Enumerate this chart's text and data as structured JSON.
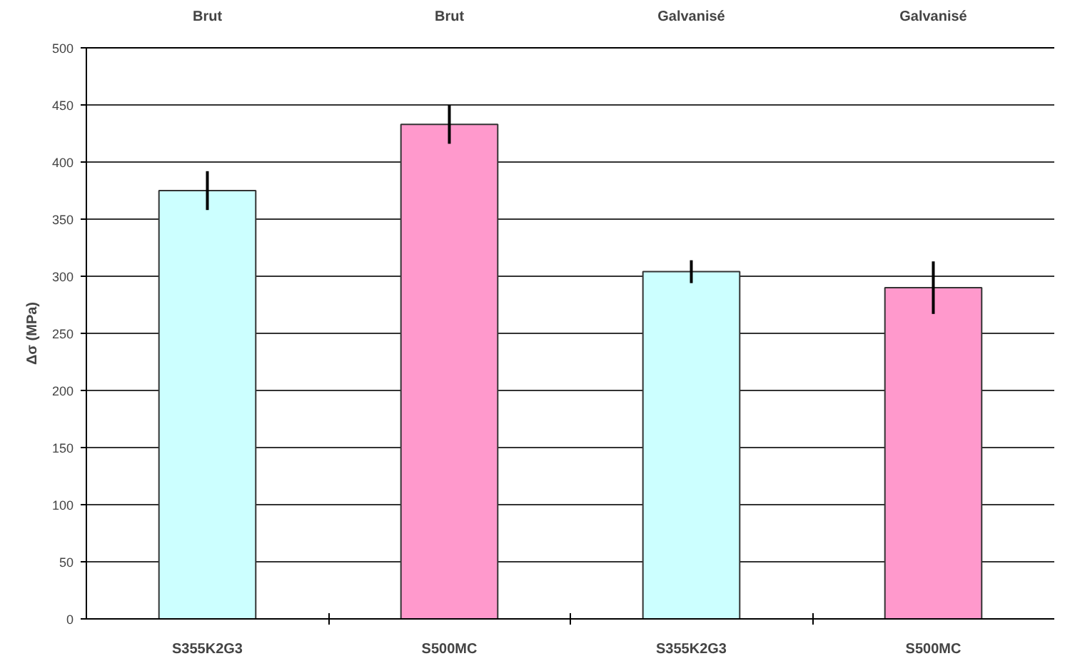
{
  "chart_data": {
    "type": "bar",
    "ylabel": "Δσ (MPa)",
    "categories": [
      "S355K2G3",
      "S500MC",
      "S355K2G3",
      "S500MC"
    ],
    "values": [
      375,
      433,
      304,
      290
    ],
    "colors": [
      "#ccffff",
      "#ff99cc",
      "#ccffff",
      "#ff99cc"
    ],
    "errors": [
      17,
      17,
      10,
      23
    ],
    "annotations": [
      "Brut",
      "Brut",
      "Galvanisé",
      "Galvanisé"
    ],
    "ylim": [
      0,
      500
    ],
    "yticks": [
      0,
      50,
      100,
      150,
      200,
      250,
      300,
      350,
      400,
      450,
      500
    ],
    "grid": "y"
  }
}
